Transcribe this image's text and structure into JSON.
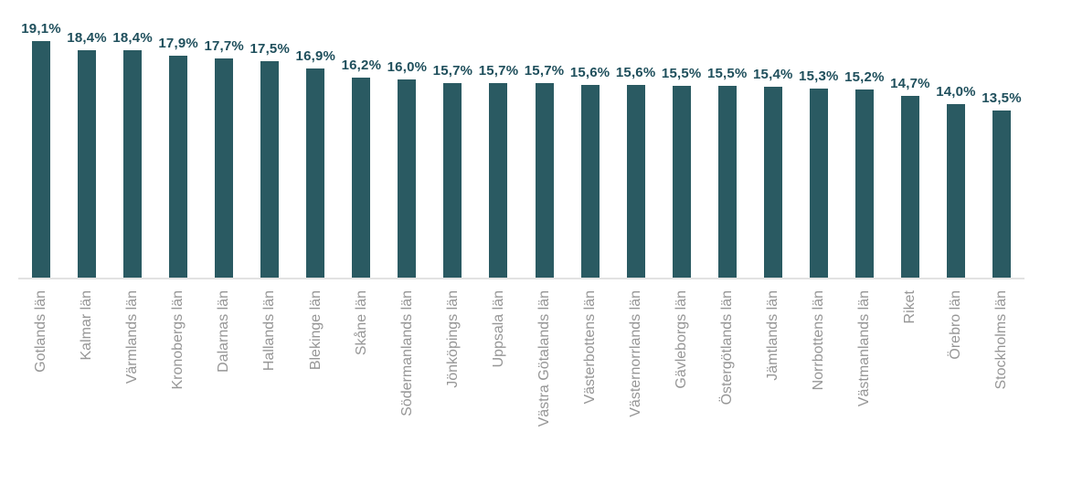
{
  "chart_data": {
    "type": "bar",
    "title": "",
    "xlabel": "",
    "ylabel": "",
    "legend": "none",
    "grid": false,
    "ylim": [
      0,
      20
    ],
    "bar_color": "#2a5a62",
    "value_label_color": "#1f4f5c",
    "category_label_color": "#969696",
    "axis_line_color": "#e2e2e2",
    "categories": [
      "Gotlands län",
      "Kalmar län",
      "Värmlands län",
      "Kronobergs län",
      "Dalarnas län",
      "Hallands län",
      "Blekinge län",
      "Skåne län",
      "Södermanlands län",
      "Jönköpings län",
      "Uppsala län",
      "Västra Götalands län",
      "Västerbottens län",
      "Västernorrlands län",
      "Gävleborgs län",
      "Östergötlands län",
      "Jämtlands län",
      "Norrbottens län",
      "Västmanlands län",
      "Riket",
      "Örebro län",
      "Stockholms län"
    ],
    "values": [
      19.1,
      18.4,
      18.4,
      17.9,
      17.7,
      17.5,
      16.9,
      16.2,
      16.0,
      15.7,
      15.7,
      15.7,
      15.6,
      15.6,
      15.5,
      15.5,
      15.4,
      15.3,
      15.2,
      14.7,
      14.0,
      13.5
    ],
    "value_labels": [
      "19,1%",
      "18,4%",
      "18,4%",
      "17,9%",
      "17,7%",
      "17,5%",
      "16,9%",
      "16,2%",
      "16,0%",
      "15,7%",
      "15,7%",
      "15,7%",
      "15,6%",
      "15,6%",
      "15,5%",
      "15,5%",
      "15,4%",
      "15,3%",
      "15,2%",
      "14,7%",
      "14,0%",
      "13,5%"
    ]
  }
}
